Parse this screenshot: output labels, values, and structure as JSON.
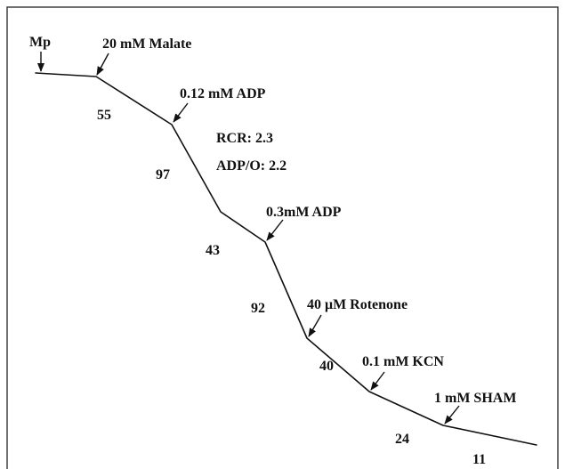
{
  "diagram": {
    "additions": [
      {
        "id": "mp",
        "label": "Mp"
      },
      {
        "id": "malate",
        "label": "20  mM Malate"
      },
      {
        "id": "adp1",
        "label": "0.12 mM ADP"
      },
      {
        "id": "adp2",
        "label": "0.3mM ADP"
      },
      {
        "id": "rotenone",
        "label": "40 μM Rotenone"
      },
      {
        "id": "kcn",
        "label": "0.1 mM KCN"
      },
      {
        "id": "sham",
        "label": "1 mM SHAM"
      }
    ],
    "rates": [
      "55",
      "97",
      "43",
      "92",
      "40",
      "24",
      "11"
    ],
    "ratios": {
      "rcr": "RCR: 2.3",
      "adp_o": "ADP/O: 2.2"
    },
    "colors": {
      "ink": "#111111",
      "background": "#ffffff",
      "frame": "#333333"
    }
  }
}
